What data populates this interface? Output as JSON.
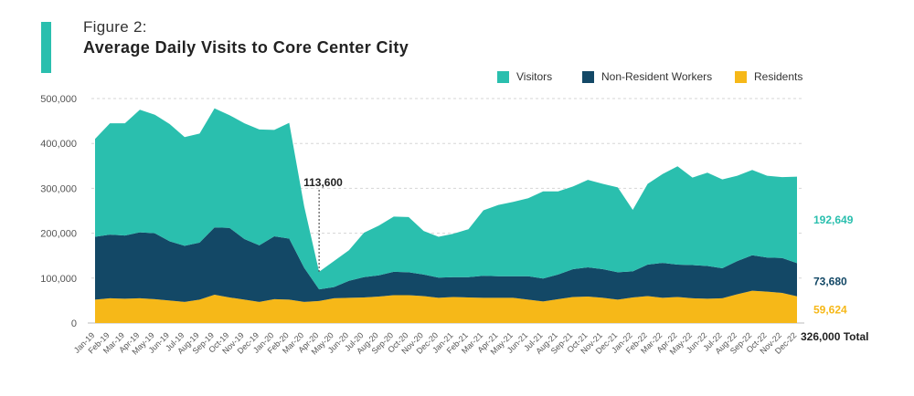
{
  "figure_label": "Figure 2:",
  "figure_title": "Average Daily Visits to Core Center City",
  "colors": {
    "visitors": "#2abfae",
    "workers": "#134866",
    "residents": "#f6b818",
    "accent": "#2abfae"
  },
  "chart_data": {
    "type": "area",
    "stacked": true,
    "title": "Average Daily Visits to Core Center City",
    "xlabel": "",
    "ylabel": "",
    "ylim": [
      0,
      500000
    ],
    "yticks": [
      "500,000",
      "400,000",
      "300,000",
      "200,000",
      "100,000",
      "0"
    ],
    "grid": "horizontal dashed",
    "legend_position": "top-right",
    "categories": [
      "Jan-19",
      "Feb-19",
      "Mar-19",
      "Apr-19",
      "May-19",
      "Jun-19",
      "Jul-19",
      "Aug-19",
      "Sep-19",
      "Oct-19",
      "Nov-19",
      "Dec-19",
      "Jan-20",
      "Feb-20",
      "Mar-20",
      "Apr-20",
      "May-20",
      "Jun-20",
      "Jul-20",
      "Aug-20",
      "Sep-20",
      "Oct-20",
      "Nov-20",
      "Dec-20",
      "Jan-21",
      "Feb-21",
      "Mar-21",
      "Apr-21",
      "May-21",
      "Jun-21",
      "Jul-21",
      "Aug-21",
      "Sep-21",
      "Oct-21",
      "Nov-21",
      "Dec-21",
      "Jan-22",
      "Feb-22",
      "Mar-22",
      "Apr-22",
      "May-22",
      "Jun-22",
      "Jul-22",
      "Aug-22",
      "Sep-22",
      "Oct-22",
      "Nov-22",
      "Dec-22"
    ],
    "series": [
      {
        "name": "Residents",
        "key": "residents",
        "values": [
          52000,
          55000,
          54000,
          55000,
          53000,
          50000,
          47000,
          52000,
          63000,
          57000,
          52000,
          47000,
          53000,
          52000,
          47000,
          49000,
          55000,
          56000,
          57000,
          59000,
          62000,
          62000,
          60000,
          56000,
          58000,
          57000,
          56000,
          56000,
          56000,
          52000,
          48000,
          53000,
          58000,
          59000,
          56000,
          52000,
          57000,
          60000,
          56000,
          58000,
          55000,
          54000,
          55000,
          64000,
          72000,
          70000,
          67000,
          59624
        ]
      },
      {
        "name": "Non-Resident Workers",
        "key": "workers",
        "values": [
          140000,
          142000,
          141000,
          147000,
          147000,
          132000,
          125000,
          127000,
          150000,
          155000,
          135000,
          126000,
          140000,
          136000,
          76000,
          26000,
          25000,
          38000,
          45000,
          47000,
          52000,
          51000,
          48000,
          45000,
          44000,
          45000,
          49000,
          48000,
          48000,
          52000,
          51000,
          55000,
          62000,
          65000,
          64000,
          61000,
          58000,
          70000,
          78000,
          72000,
          74000,
          73000,
          67000,
          74000,
          79000,
          76000,
          78000,
          73680
        ]
      },
      {
        "name": "Visitors",
        "key": "visitors",
        "values": [
          218000,
          248000,
          250000,
          273000,
          264000,
          261000,
          242000,
          243000,
          265000,
          251000,
          258000,
          258000,
          237000,
          258000,
          137000,
          39000,
          58000,
          68000,
          99000,
          111000,
          123000,
          123000,
          97000,
          91000,
          97000,
          107000,
          146000,
          159000,
          166000,
          174000,
          194000,
          185000,
          184000,
          195000,
          190000,
          189000,
          137000,
          180000,
          198000,
          219000,
          195000,
          208000,
          198000,
          190000,
          190000,
          182000,
          180000,
          192649
        ]
      }
    ],
    "annotations": {
      "apr20_total": "113,600",
      "end_visitors": "192,649",
      "end_workers": "73,680",
      "end_residents": "59,624",
      "end_total": "326,000 Total"
    }
  }
}
